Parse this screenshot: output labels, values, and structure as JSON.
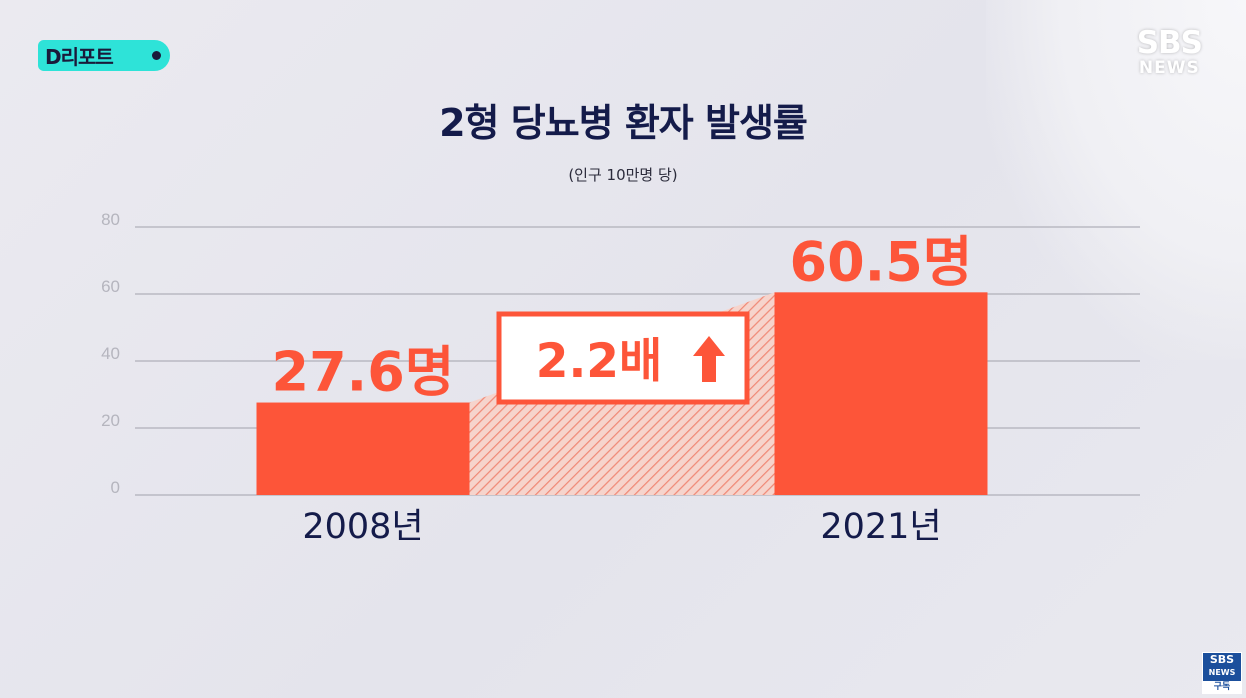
{
  "badge": {
    "label": "D리포트"
  },
  "logo": {
    "main": "SBS",
    "sub": "NEWS"
  },
  "chart_data": {
    "type": "bar",
    "title": "2형 당뇨병 환자 발생률",
    "subtitle": "(인구 10만명 당)",
    "categories": [
      "2008년",
      "2021년"
    ],
    "values": [
      27.6,
      60.5
    ],
    "value_labels": [
      "27.6명",
      "60.5명"
    ],
    "ylim": [
      0,
      80
    ],
    "yticks": [
      "0",
      "20",
      "40",
      "60",
      "80"
    ],
    "annotation": "2.2배",
    "bar_color": "#fd5539",
    "grid": true
  },
  "subscribe": {
    "line1": "SBS",
    "line2": "NEWS",
    "line3": "구독"
  }
}
